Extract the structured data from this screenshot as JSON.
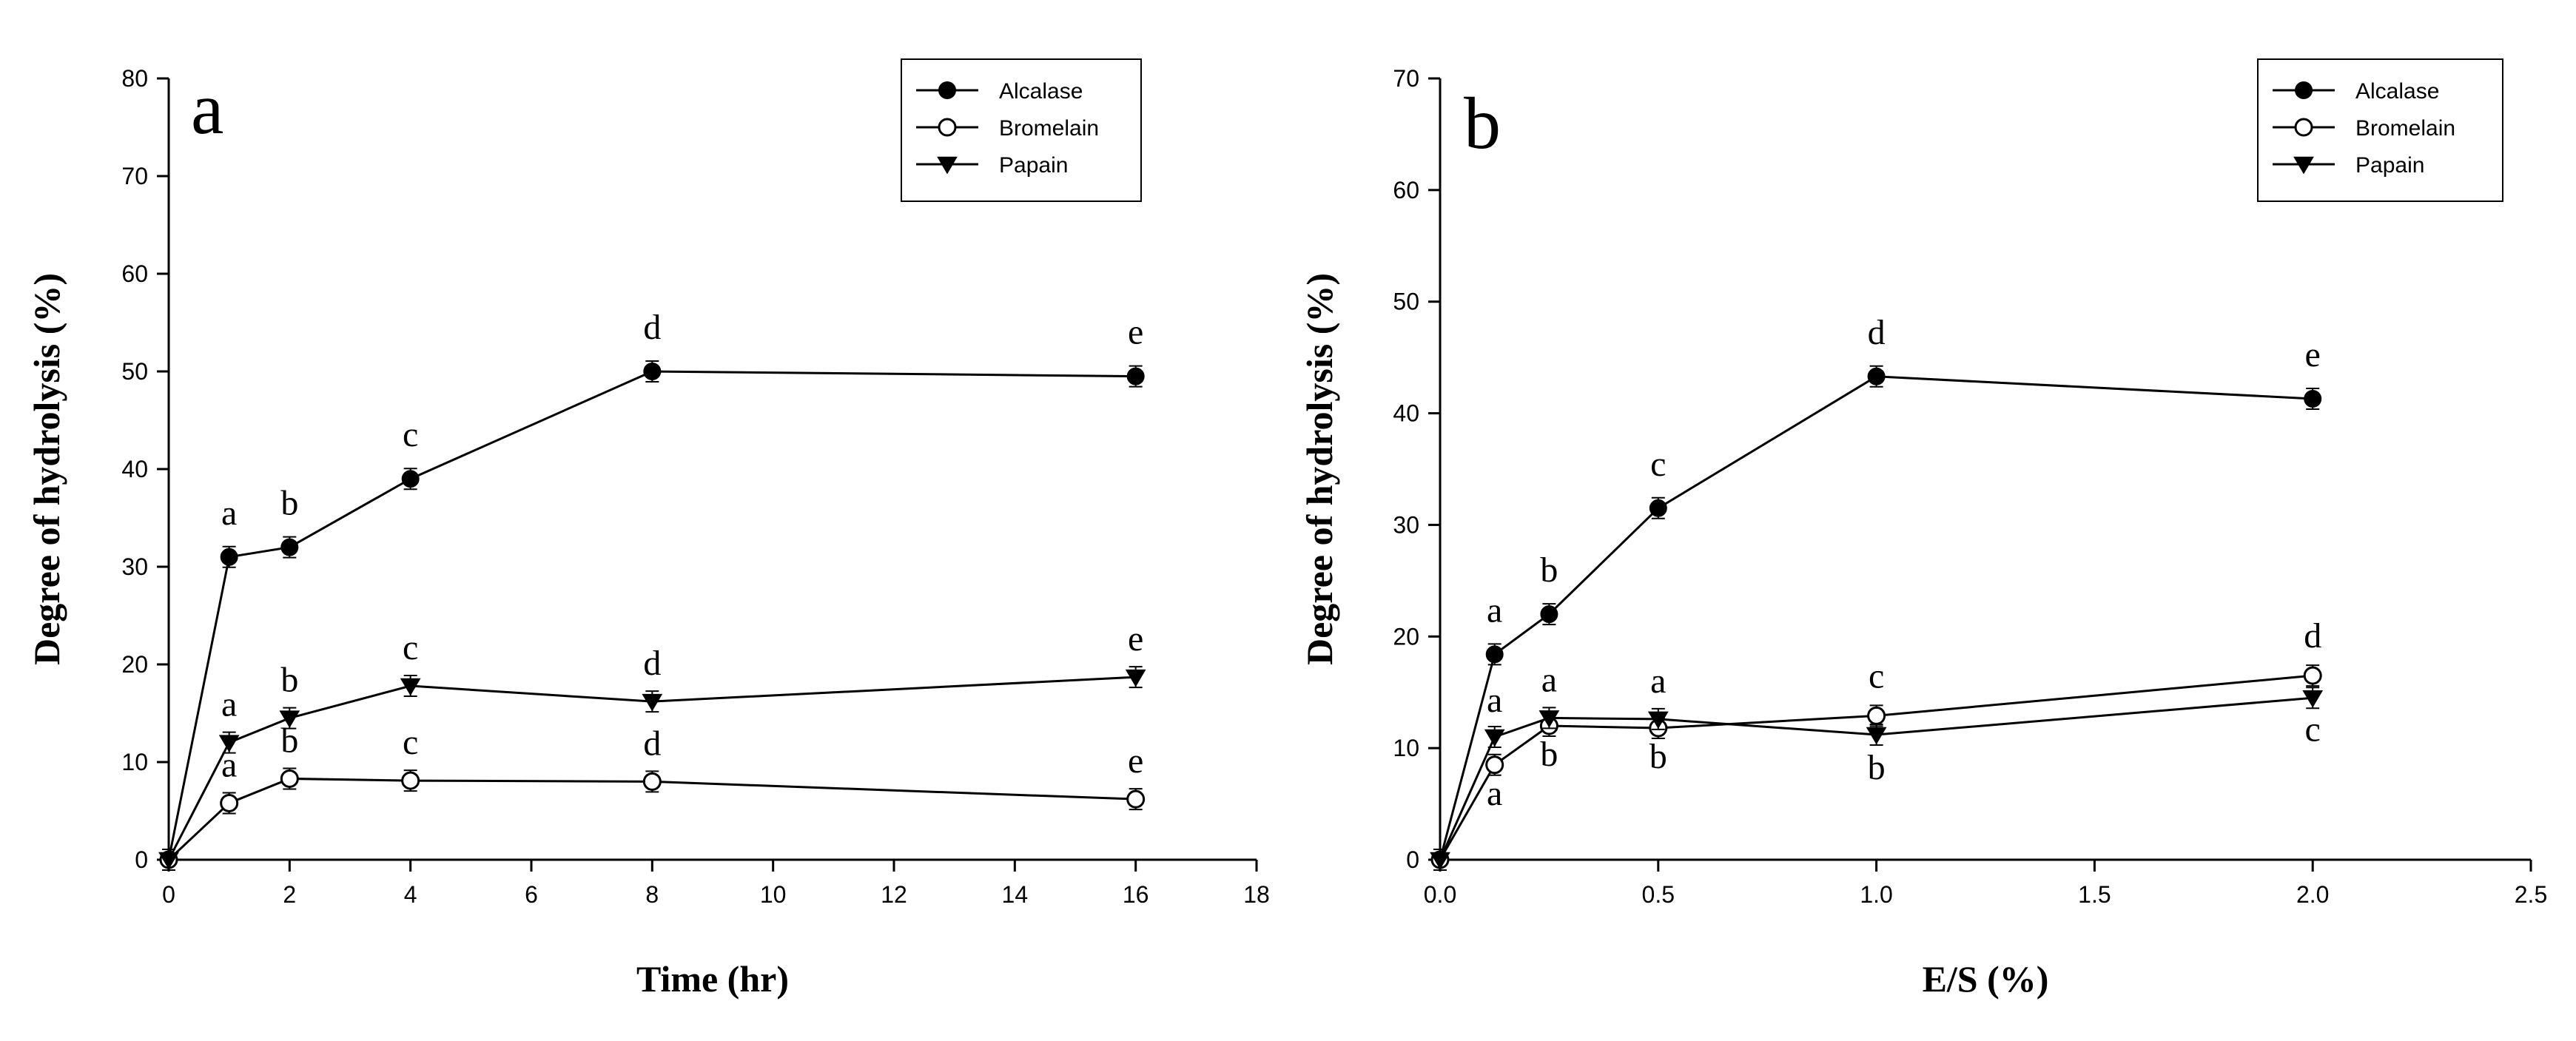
{
  "chart_data": [
    {
      "type": "line",
      "panel_label": "a",
      "xlabel": "Time (hr)",
      "ylabel": "Degree of hydrolysis (%)",
      "xlim": [
        0,
        18
      ],
      "ylim": [
        0,
        80
      ],
      "xticks": [
        0,
        2,
        4,
        6,
        8,
        10,
        12,
        14,
        16,
        18
      ],
      "yticks": [
        0,
        10,
        20,
        30,
        40,
        50,
        60,
        70,
        80
      ],
      "legend_position": "top-right",
      "series": [
        {
          "name": "Alcalase",
          "marker": "filled-circle",
          "x": [
            0,
            1,
            2,
            4,
            8,
            16
          ],
          "y": [
            0,
            31,
            32,
            39,
            50,
            49.5
          ],
          "labels": [
            "",
            "a",
            "b",
            "c",
            "d",
            "e"
          ]
        },
        {
          "name": "Bromelain",
          "marker": "open-circle",
          "x": [
            0,
            1,
            2,
            4,
            8,
            16
          ],
          "y": [
            0,
            5.8,
            8.3,
            8.1,
            8,
            6.2
          ],
          "labels": [
            "",
            "a",
            "b",
            "c",
            "d",
            "e"
          ]
        },
        {
          "name": "Papain",
          "marker": "filled-triangle-down",
          "x": [
            0,
            1,
            2,
            4,
            8,
            16
          ],
          "y": [
            0,
            12,
            14.5,
            17.8,
            16.2,
            18.7
          ],
          "labels": [
            "",
            "a",
            "b",
            "c",
            "d",
            "e"
          ]
        }
      ]
    },
    {
      "type": "line",
      "panel_label": "b",
      "xlabel": "E/S (%)",
      "ylabel": "Degree of hydrolysis (%)",
      "xlim": [
        0,
        2.5
      ],
      "ylim": [
        0,
        70
      ],
      "xticks": [
        "0.0",
        "0.5",
        "1.0",
        "1.5",
        "2.0",
        "2.5"
      ],
      "yticks": [
        0,
        10,
        20,
        30,
        40,
        50,
        60,
        70
      ],
      "legend_position": "top-right",
      "series": [
        {
          "name": "Alcalase",
          "marker": "filled-circle",
          "x": [
            0,
            0.125,
            0.25,
            0.5,
            1,
            2
          ],
          "y": [
            0,
            18.4,
            22,
            31.5,
            43.3,
            41.3
          ],
          "labels": [
            "",
            "a",
            "b",
            "c",
            "d",
            "e"
          ]
        },
        {
          "name": "Bromelain",
          "marker": "open-circle",
          "x": [
            0,
            0.125,
            0.25,
            0.5,
            1,
            2
          ],
          "y": [
            0,
            8.5,
            12,
            11.8,
            12.9,
            16.5
          ],
          "labels": [
            "",
            "a",
            "b",
            "b",
            "c",
            "d"
          ]
        },
        {
          "name": "Papain",
          "marker": "filled-triangle-down",
          "x": [
            0,
            0.125,
            0.25,
            0.5,
            1,
            2
          ],
          "y": [
            0,
            11,
            12.7,
            12.6,
            11.2,
            14.5
          ],
          "labels": [
            "",
            "a",
            "a",
            "a",
            "b",
            "c"
          ]
        }
      ]
    }
  ]
}
